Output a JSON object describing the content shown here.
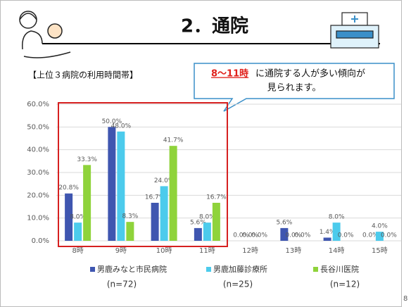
{
  "header": {
    "title": "2．通院",
    "page_number": "8"
  },
  "callout": {
    "highlight": "8～11時",
    "lines": [
      "に通院する人が多い傾向が",
      "見られます。"
    ]
  },
  "chart_data": {
    "type": "bar",
    "subtitle": "【上位３病院の利用時間帯】",
    "categories": [
      "8時",
      "9時",
      "10時",
      "11時",
      "12時",
      "13時",
      "14時",
      "15時"
    ],
    "series": [
      {
        "name": "男鹿みなと市民病院",
        "sample_size": "(n=72)",
        "color": "#3f56b0",
        "values": [
          20.8,
          50.0,
          16.7,
          5.6,
          0.0,
          5.6,
          1.4,
          0.0
        ],
        "value_labels": [
          "20.8%",
          "50.0%",
          "16.7%",
          "5.6%",
          "0.0%",
          "5.6%",
          "1.4%",
          "0.0%"
        ]
      },
      {
        "name": "男鹿加藤診療所",
        "sample_size": "(n=25)",
        "color": "#4ccbec",
        "values": [
          8.0,
          48.0,
          24.0,
          8.0,
          0.0,
          0.0,
          8.0,
          4.0
        ],
        "value_labels": [
          "8.0%",
          "48.0%",
          "24.0%",
          "8.0%",
          "0.0%",
          "0.0%",
          "8.0%",
          "4.0%"
        ]
      },
      {
        "name": "長谷川医院",
        "sample_size": "(n=12)",
        "color": "#8fd33b",
        "values": [
          33.3,
          8.3,
          41.7,
          16.7,
          0.0,
          0.0,
          0.0,
          0.0
        ],
        "value_labels": [
          "33.3%",
          "8.3%",
          "41.7%",
          "16.7%",
          "0.0%",
          "0.0%",
          "0.0%",
          "0.0%"
        ]
      }
    ],
    "ylim": [
      0,
      60
    ],
    "yticks": [
      {
        "value": 0,
        "label": "0.0%"
      },
      {
        "value": 10,
        "label": "10.0%"
      },
      {
        "value": 20,
        "label": "20.0%"
      },
      {
        "value": 30,
        "label": "30.0%"
      },
      {
        "value": 40,
        "label": "40.0%"
      },
      {
        "value": 50,
        "label": "50.0%"
      },
      {
        "value": 60,
        "label": "60.0%"
      }
    ],
    "grid": true
  }
}
